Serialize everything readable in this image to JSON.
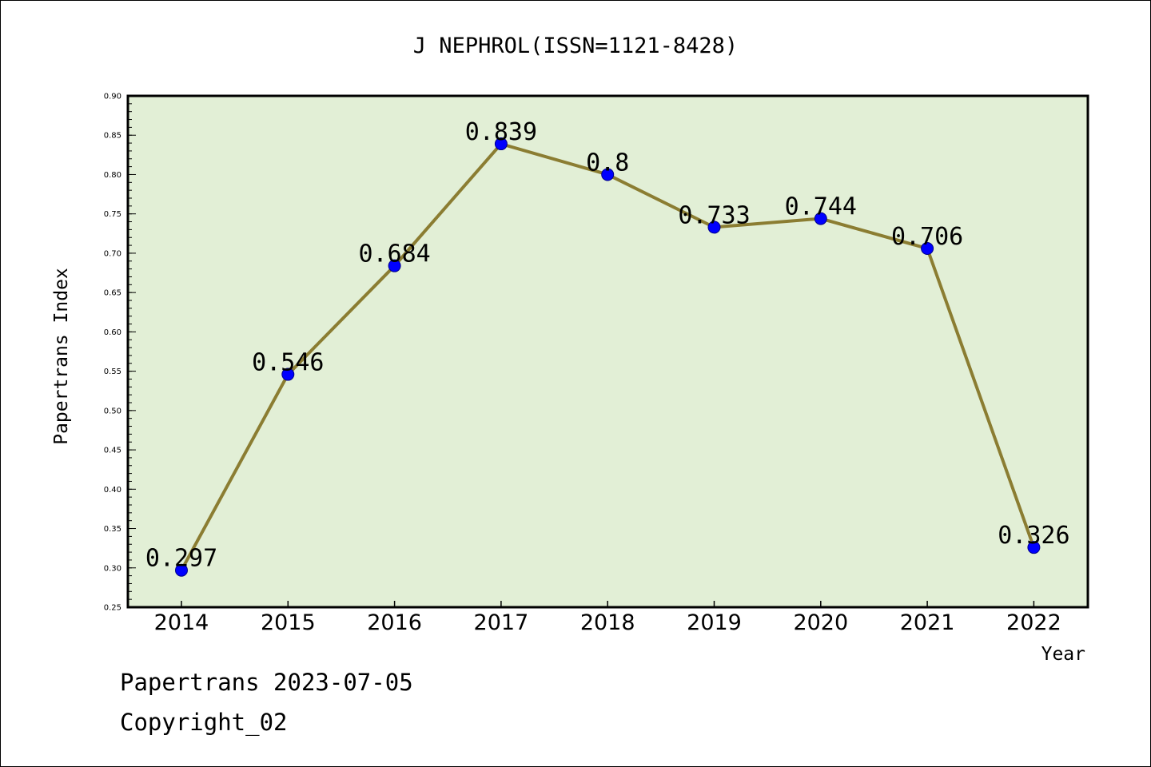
{
  "chart_data": {
    "type": "line",
    "title": "J NEPHROL(ISSN=1121-8428)",
    "xlabel": "Year",
    "ylabel": "Papertrans Index",
    "categories": [
      "2014",
      "2015",
      "2016",
      "2017",
      "2018",
      "2019",
      "2020",
      "2021",
      "2022"
    ],
    "series": [
      {
        "values": [
          0.297,
          0.546,
          0.684,
          0.839,
          0.8,
          0.733,
          0.744,
          0.706,
          0.326
        ],
        "labels": [
          "0.297",
          "0.546",
          "0.684",
          "0.839",
          "0.8",
          "0.733",
          "0.744",
          "0.706",
          "0.326"
        ],
        "line_color": "#8b7d32",
        "marker_color": "#0000ff"
      }
    ],
    "ylim": [
      0.25,
      0.9
    ],
    "yticks": [
      "0.25",
      "0.30",
      "0.35",
      "0.40",
      "0.45",
      "0.50",
      "0.55",
      "0.60",
      "0.65",
      "0.70",
      "0.75",
      "0.80",
      "0.85",
      "0.90"
    ],
    "grid": false,
    "plot_background": "#e2efd6"
  },
  "footer": {
    "line1": "Papertrans 2023-07-05",
    "line2": "Copyright_02"
  }
}
